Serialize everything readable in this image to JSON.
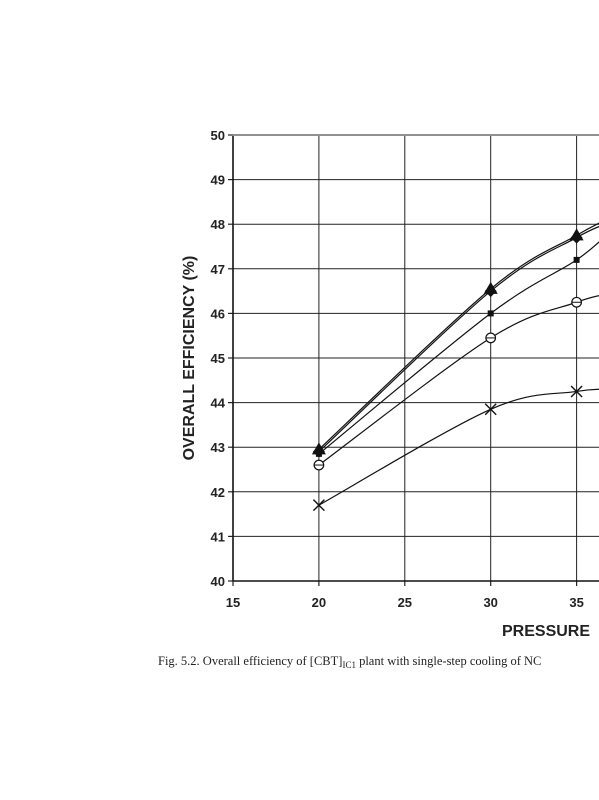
{
  "chart_data": {
    "type": "line",
    "title": "",
    "xlabel": "PRESSURE",
    "ylabel": "OVERALL EFFICIENCY (%)",
    "xlim": [
      15,
      37
    ],
    "ylim": [
      40,
      50
    ],
    "x_ticks": [
      15,
      20,
      25,
      30,
      35
    ],
    "y_ticks": [
      40,
      41,
      42,
      43,
      44,
      45,
      46,
      47,
      48,
      49,
      50
    ],
    "grid": true,
    "series": [
      {
        "marker": "triangle",
        "points": [
          [
            20,
            42.95
          ],
          [
            30,
            46.55
          ],
          [
            35,
            47.75
          ],
          [
            37,
            48.15
          ]
        ]
      },
      {
        "marker": "diamond",
        "points": [
          [
            20,
            42.9
          ],
          [
            30,
            46.5
          ],
          [
            35,
            47.7
          ],
          [
            37,
            48.05
          ]
        ]
      },
      {
        "marker": "square",
        "points": [
          [
            20,
            42.85
          ],
          [
            30,
            46.0
          ],
          [
            35,
            47.2
          ],
          [
            37,
            47.85
          ]
        ]
      },
      {
        "marker": "circle",
        "points": [
          [
            20,
            42.6
          ],
          [
            30,
            45.45
          ],
          [
            35,
            46.25
          ],
          [
            37,
            46.45
          ]
        ]
      },
      {
        "marker": "x",
        "points": [
          [
            20,
            41.7
          ],
          [
            30,
            43.85
          ],
          [
            35,
            44.25
          ],
          [
            37,
            44.3
          ]
        ]
      }
    ],
    "caption": {
      "prefix": "Fig. 5.2.  Overall efficiency of [CBT]",
      "subscript": "IC1",
      "suffix": " plant with single-step cooling of NC"
    }
  }
}
